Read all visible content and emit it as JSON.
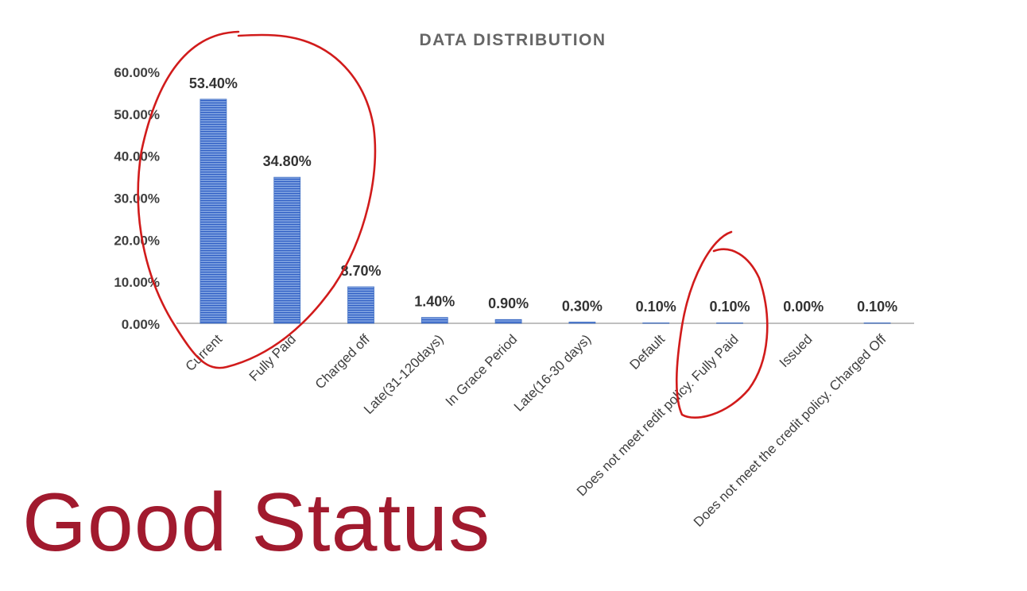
{
  "caption": "Good Status",
  "colors": {
    "bar_fill": "#7ea1e0",
    "bar_stripe": "#2f5ec4",
    "annotation": "#d11b1b",
    "caption": "#a11a2e",
    "text": "#333333",
    "title": "#666666",
    "axis": "#bfbfbf"
  },
  "chart_data": {
    "type": "bar",
    "title": "DATA DISTRIBUTION",
    "xlabel": "",
    "ylabel": "",
    "ylim": [
      0,
      0.6
    ],
    "y_ticks": [
      {
        "value": 0.0,
        "label": "0.00%"
      },
      {
        "value": 0.1,
        "label": "10.00%"
      },
      {
        "value": 0.2,
        "label": "20.00%"
      },
      {
        "value": 0.3,
        "label": "30.00%"
      },
      {
        "value": 0.4,
        "label": "40.00%"
      },
      {
        "value": 0.5,
        "label": "50.00%"
      },
      {
        "value": 0.6,
        "label": "60.00%"
      }
    ],
    "grid": false,
    "legend": "none",
    "categories": [
      "Current",
      "Fully Paid",
      "Charged off",
      "Late(31-120days)",
      "In Grace Period",
      "Late(16-30 days)",
      "Default",
      "Does not meet redit policy. Fully Paid",
      "Issued",
      "Does not meet the credit policy. Charged Off"
    ],
    "values": [
      0.534,
      0.348,
      0.087,
      0.014,
      0.009,
      0.003,
      0.001,
      0.001,
      0.0,
      0.001
    ],
    "data_labels": [
      "53.40%",
      "34.80%",
      "8.70%",
      "1.40%",
      "0.90%",
      "0.30%",
      "0.10%",
      "0.10%",
      "0.00%",
      "0.10%"
    ],
    "annotations": [
      {
        "type": "freehand-circle",
        "around_categories": [
          "Current",
          "Fully Paid"
        ]
      },
      {
        "type": "freehand-circle",
        "around_categories": [
          "Does not meet redit policy. Fully Paid"
        ]
      }
    ]
  }
}
